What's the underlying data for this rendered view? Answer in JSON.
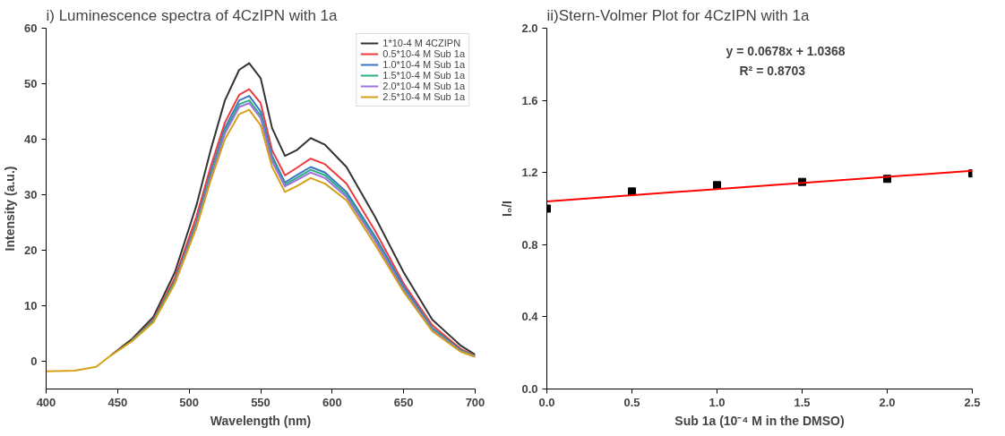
{
  "chart_data": [
    {
      "type": "line",
      "title": "i) Luminescence spectra of 4CzIPN with 1a",
      "xlabel": "Wavelength (nm)",
      "ylabel": "Intensity (a.u.)",
      "x": [
        400,
        420,
        435,
        445,
        460,
        475,
        490,
        505,
        515,
        525,
        535,
        542,
        550,
        558,
        567,
        575,
        585,
        595,
        610,
        630,
        650,
        670,
        690,
        700
      ],
      "series": [
        {
          "name": "1*10-4 M 4CZIPN",
          "color": "#333333",
          "values": [
            null,
            null,
            null,
            1.0,
            4.0,
            8.0,
            16,
            28,
            38,
            47,
            52.5,
            53.7,
            51,
            42,
            37,
            38,
            40.2,
            39,
            35,
            26,
            16,
            7.5,
            2.8,
            1.2
          ]
        },
        {
          "name": "0.5*10-4 M Sub 1a",
          "color": "#ee3b3b",
          "values": [
            null,
            null,
            null,
            null,
            3.8,
            7.5,
            15,
            26,
            35,
            43,
            48,
            49,
            46.5,
            38,
            33.5,
            34.8,
            36.5,
            35.5,
            32,
            23.5,
            14,
            6.5,
            2.2,
            1.0
          ]
        },
        {
          "name": "1.0*10-4 M Sub 1a",
          "color": "#3a75c4",
          "values": [
            null,
            null,
            null,
            null,
            3.7,
            7.3,
            14.5,
            25,
            34,
            42,
            47,
            47.8,
            45,
            37,
            32.2,
            33.5,
            35,
            34,
            30.5,
            22.5,
            13.5,
            6,
            2,
            0.9
          ]
        },
        {
          "name": "1.5*10-4 M Sub 1a",
          "color": "#2bb07f",
          "values": [
            null,
            null,
            null,
            null,
            3.7,
            7.2,
            14.3,
            24.6,
            33.5,
            41.5,
            46.3,
            47,
            44.3,
            36.5,
            31.8,
            33,
            34.5,
            33.5,
            30,
            22,
            13,
            5.8,
            1.9,
            0.9
          ]
        },
        {
          "name": "2.0*10-4 M Sub 1a",
          "color": "#a070e0",
          "values": [
            null,
            null,
            null,
            null,
            null,
            null,
            14.2,
            24.3,
            33,
            41,
            45.8,
            46.5,
            43.8,
            36,
            31.5,
            32.6,
            34,
            33,
            29.6,
            21.7,
            12.8,
            5.6,
            1.8,
            0.8
          ]
        },
        {
          "name": "2.5*10-4 M Sub 1a",
          "color": "#d4a017",
          "values": [
            -1.8,
            -1.7,
            -1.0,
            1.0,
            3.6,
            7.0,
            14,
            24,
            32.5,
            40,
            44.5,
            45.3,
            42.5,
            35,
            30.5,
            31.5,
            33,
            32,
            29,
            21,
            12.5,
            5.4,
            1.7,
            0.8
          ]
        }
      ],
      "xlim": [
        400,
        700
      ],
      "xticks": [
        400,
        450,
        500,
        550,
        600,
        650,
        700
      ],
      "ylim": [
        -5,
        60
      ],
      "yticks": [
        0,
        10,
        20,
        30,
        40,
        50,
        60
      ],
      "legend": "top right",
      "grid": false
    },
    {
      "type": "scatter",
      "title": "ii)Stern-Volmer Plot for 4CzIPN with 1a",
      "xlabel": "Sub 1a (10⁻⁴ M in the DMSO)",
      "ylabel": "I₀/I",
      "x": [
        0,
        0.5,
        1.0,
        1.5,
        2.0,
        2.5
      ],
      "series": [
        {
          "color": "#000000",
          "marker": "square",
          "values": [
            1.0,
            1.095,
            1.13,
            1.148,
            1.165,
            1.195
          ]
        },
        {
          "type": "line",
          "color": "#ff0000",
          "x": [
            0,
            2.5
          ],
          "values": [
            1.04,
            1.21
          ]
        }
      ],
      "annotations": [
        "y = 0.0678x + 1.0368",
        "R² = 0.8703"
      ],
      "xlim": [
        0,
        2.5
      ],
      "xticks": [
        {
          "value": 0,
          "label": "0.0"
        },
        0.5,
        {
          "value": 1,
          "label": "1.0"
        },
        1.5,
        {
          "value": 2,
          "label": "2.0"
        },
        2.5
      ],
      "ylim": [
        0,
        2.0
      ],
      "yticks": [
        {
          "value": 0,
          "label": "0.0"
        },
        0.4,
        0.8,
        1.2,
        1.6,
        {
          "value": 2,
          "label": "2.0"
        }
      ],
      "grid": false
    }
  ]
}
